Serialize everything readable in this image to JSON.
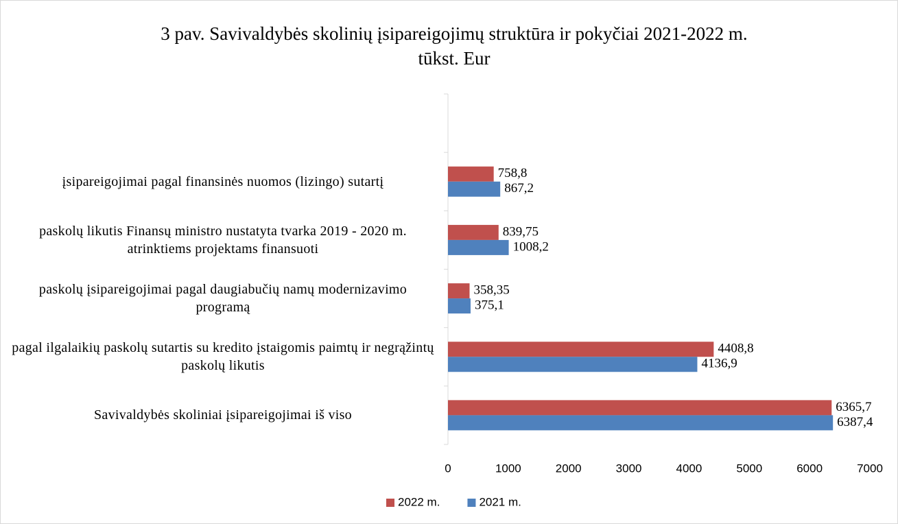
{
  "chart_data": {
    "type": "bar",
    "orientation": "horizontal",
    "title": "3 pav. Savivaldybės skolinių įsipareigojimų struktūra ir pokyčiai 2021-2022 m.",
    "subtitle": "tūkst. Eur",
    "categories": [
      "Savivaldybės skoliniai įsipareigojimai iš viso",
      "pagal ilgalaikių paskolų sutartis su kredito įstaigomis paimtų ir negrąžintų paskolų likutis",
      "paskolų įsipareigojimai pagal daugiabučių namų modernizavimo programą",
      "paskolų likutis Finansų ministro nustatyta tvarka 2019 - 2020 m. atrinktiems projektams finansuoti",
      "įsipareigojimai pagal finansinės nuomos (lizingo) sutartį",
      null
    ],
    "series": [
      {
        "name": "2022 m.",
        "color": "#c0504d",
        "values": [
          6365.7,
          4408.8,
          358.35,
          839.75,
          758.8,
          null
        ],
        "value_labels": [
          "6365,7",
          "4408,8",
          "358,35",
          "839,75",
          "758,8",
          null
        ]
      },
      {
        "name": "2021 m.",
        "color": "#4f81bd",
        "values": [
          6387.4,
          4136.9,
          375.1,
          1008.2,
          867.2,
          null
        ],
        "value_labels": [
          "6387,4",
          "4136,9",
          "375,1",
          "1008,2",
          "867,2",
          null
        ]
      }
    ],
    "xlim": [
      0,
      7000
    ],
    "xticks": [
      0,
      1000,
      2000,
      3000,
      4000,
      5000,
      6000,
      7000
    ],
    "grid": false,
    "legend": "bottom"
  }
}
